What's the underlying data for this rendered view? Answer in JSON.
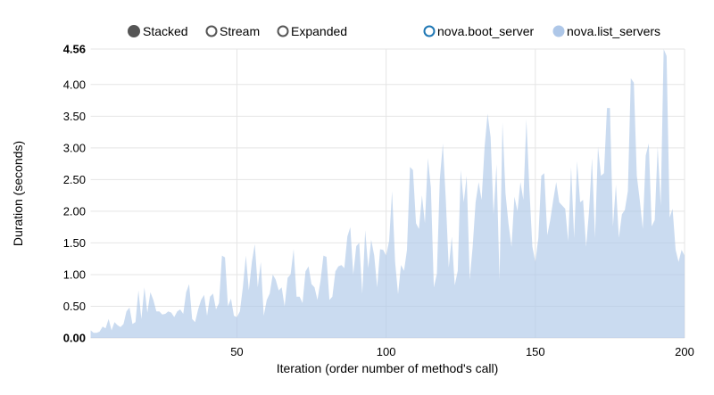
{
  "controls": [
    {
      "label": "Stacked",
      "selected": true
    },
    {
      "label": "Stream",
      "selected": false
    },
    {
      "label": "Expanded",
      "selected": false
    }
  ],
  "colors": {
    "control_selected": "#555555",
    "boot_server": "#1f77b4",
    "list_servers": "#aec7e8",
    "grid": "#e5e5e5"
  },
  "chart_data": {
    "type": "area",
    "stacked": true,
    "xlabel": "Iteration (order number of method's call)",
    "ylabel": "Duration (seconds)",
    "xlim": [
      1,
      200
    ],
    "ylim": [
      0,
      4.56
    ],
    "x_ticks": [
      "50",
      "100",
      "150",
      "200"
    ],
    "y_ticks": [
      "0.00",
      "0.50",
      "1.00",
      "1.50",
      "2.00",
      "2.50",
      "3.00",
      "3.50",
      "4.00",
      "4.56"
    ],
    "grid": true,
    "legend_position": "top-right",
    "series": [
      {
        "name": "nova.boot_server",
        "disabled": true,
        "values": []
      },
      {
        "name": "nova.list_servers",
        "disabled": false,
        "values": [
          0.12,
          0.08,
          0.08,
          0.1,
          0.18,
          0.15,
          0.3,
          0.12,
          0.25,
          0.2,
          0.17,
          0.22,
          0.42,
          0.48,
          0.22,
          0.25,
          0.75,
          0.3,
          0.8,
          0.4,
          0.72,
          0.6,
          0.42,
          0.42,
          0.37,
          0.38,
          0.42,
          0.4,
          0.33,
          0.42,
          0.45,
          0.38,
          0.72,
          0.85,
          0.3,
          0.25,
          0.45,
          0.6,
          0.68,
          0.35,
          0.65,
          0.7,
          0.45,
          0.55,
          1.3,
          1.27,
          0.5,
          0.62,
          0.35,
          0.33,
          0.42,
          0.8,
          1.3,
          0.75,
          1.2,
          1.48,
          0.8,
          1.2,
          0.35,
          0.6,
          0.7,
          1.0,
          0.92,
          0.75,
          0.8,
          0.5,
          0.95,
          1.0,
          1.4,
          0.65,
          0.65,
          0.55,
          1.05,
          1.13,
          0.85,
          0.8,
          0.6,
          0.9,
          1.3,
          1.28,
          0.6,
          0.65,
          1.05,
          1.13,
          1.15,
          1.1,
          1.6,
          1.75,
          1.0,
          1.45,
          1.5,
          0.7,
          1.7,
          1.1,
          1.55,
          1.3,
          0.8,
          1.4,
          1.39,
          1.3,
          1.53,
          2.32,
          1.2,
          0.69,
          1.15,
          1.06,
          1.39,
          2.7,
          2.65,
          1.81,
          1.72,
          2.25,
          1.81,
          2.84,
          2.37,
          0.8,
          1.01,
          2.51,
          3.07,
          2.18,
          1.11,
          1.6,
          0.83,
          1.06,
          2.65,
          2.14,
          2.56,
          0.92,
          1.44,
          2.14,
          2.46,
          2.18,
          3.02,
          3.54,
          3.17,
          1.95,
          2.74,
          0.92,
          3.4,
          2.28,
          1.81,
          1.44,
          2.23,
          2.0,
          2.46,
          2.18,
          3.45,
          2.37,
          1.44,
          1.2,
          1.58,
          2.56,
          2.6,
          1.62,
          1.86,
          2.18,
          2.46,
          2.14,
          2.09,
          2.04,
          1.53,
          2.7,
          1.58,
          2.79,
          2.14,
          2.18,
          1.44,
          2.0,
          2.84,
          1.58,
          3.02,
          2.56,
          2.6,
          3.63,
          3.63,
          1.76,
          2.42,
          1.58,
          1.95,
          2.02,
          2.32,
          4.1,
          4.03,
          2.56,
          2.18,
          1.72,
          2.88,
          3.07,
          1.76,
          1.86,
          3.02,
          2.09,
          4.56,
          4.45,
          1.9,
          2.04,
          1.39,
          1.2,
          1.39,
          1.3
        ]
      }
    ]
  }
}
